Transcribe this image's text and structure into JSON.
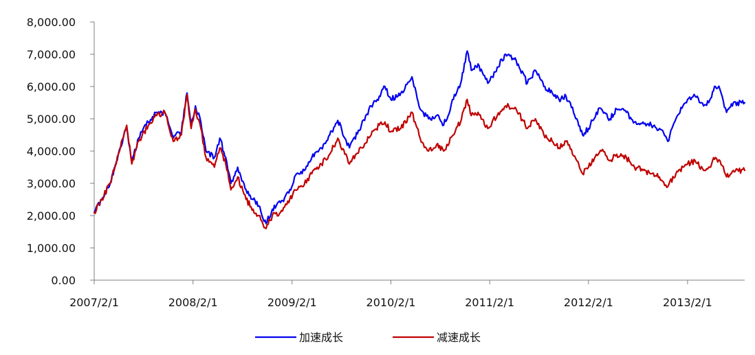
{
  "chart_data": {
    "type": "line",
    "title": "",
    "xlabel": "",
    "ylabel": "",
    "ylim": [
      0,
      8000
    ],
    "y_ticks": [
      0,
      1000,
      2000,
      3000,
      4000,
      5000,
      6000,
      7000,
      8000
    ],
    "y_tick_labels": [
      "0.00",
      "1,000.00",
      "2,000.00",
      "3,000.00",
      "4,000.00",
      "5,000.00",
      "6,000.00",
      "7,000.00",
      "8,000.00"
    ],
    "x_ticks": [
      "2007-02-01",
      "2008-02-01",
      "2009-02-01",
      "2010-02-01",
      "2011-02-01",
      "2012-02-01",
      "2013-02-01"
    ],
    "x_tick_labels": [
      "2007/2/1",
      "2008/2/1",
      "2009/2/1",
      "2010/2/1",
      "2011/2/1",
      "2012/2/1",
      "2013/2/1"
    ],
    "x_range": [
      "2007-02-01",
      "2013-08-31"
    ],
    "grid": false,
    "legend_position": "bottom",
    "series": [
      {
        "name": "加速成长",
        "color": "#0000ee",
        "points": [
          [
            "2007-02-01",
            2100
          ],
          [
            "2007-03-01",
            2500
          ],
          [
            "2007-04-01",
            3000
          ],
          [
            "2007-05-01",
            3900
          ],
          [
            "2007-06-01",
            4700
          ],
          [
            "2007-06-20",
            3700
          ],
          [
            "2007-07-15",
            4400
          ],
          [
            "2007-08-20",
            4900
          ],
          [
            "2007-09-20",
            5200
          ],
          [
            "2007-10-20",
            5200
          ],
          [
            "2007-11-20",
            4400
          ],
          [
            "2007-12-20",
            4600
          ],
          [
            "2008-01-10",
            5800
          ],
          [
            "2008-01-25",
            4800
          ],
          [
            "2008-02-10",
            5400
          ],
          [
            "2008-03-01",
            4900
          ],
          [
            "2008-03-20",
            4000
          ],
          [
            "2008-04-20",
            3800
          ],
          [
            "2008-05-10",
            4400
          ],
          [
            "2008-06-01",
            3800
          ],
          [
            "2008-06-20",
            3000
          ],
          [
            "2008-07-15",
            3500
          ],
          [
            "2008-08-15",
            2800
          ],
          [
            "2008-09-10",
            2500
          ],
          [
            "2008-10-01",
            2300
          ],
          [
            "2008-10-28",
            1750
          ],
          [
            "2008-11-20",
            2200
          ],
          [
            "2008-12-20",
            2400
          ],
          [
            "2009-01-20",
            2700
          ],
          [
            "2009-02-10",
            3200
          ],
          [
            "2009-03-10",
            3300
          ],
          [
            "2009-04-15",
            3800
          ],
          [
            "2009-05-20",
            4100
          ],
          [
            "2009-06-20",
            4500
          ],
          [
            "2009-07-20",
            4950
          ],
          [
            "2009-08-15",
            4400
          ],
          [
            "2009-09-01",
            4100
          ],
          [
            "2009-10-15",
            4800
          ],
          [
            "2009-11-20",
            5400
          ],
          [
            "2009-12-20",
            5700
          ],
          [
            "2010-01-10",
            6000
          ],
          [
            "2010-02-01",
            5600
          ],
          [
            "2010-03-10",
            5800
          ],
          [
            "2010-04-20",
            6300
          ],
          [
            "2010-05-20",
            5300
          ],
          [
            "2010-06-20",
            5000
          ],
          [
            "2010-07-20",
            5100
          ],
          [
            "2010-08-15",
            4800
          ],
          [
            "2010-09-20",
            5600
          ],
          [
            "2010-10-20",
            6200
          ],
          [
            "2010-11-10",
            7100
          ],
          [
            "2010-11-25",
            6500
          ],
          [
            "2010-12-20",
            6700
          ],
          [
            "2011-01-25",
            6100
          ],
          [
            "2011-02-10",
            6300
          ],
          [
            "2011-03-01",
            6600
          ],
          [
            "2011-04-01",
            7000
          ],
          [
            "2011-05-10",
            6800
          ],
          [
            "2011-06-20",
            6100
          ],
          [
            "2011-07-20",
            6500
          ],
          [
            "2011-08-20",
            6000
          ],
          [
            "2011-09-20",
            5800
          ],
          [
            "2011-10-15",
            5600
          ],
          [
            "2011-11-10",
            5700
          ],
          [
            "2011-12-20",
            5000
          ],
          [
            "2012-01-10",
            4500
          ],
          [
            "2012-02-01",
            4700
          ],
          [
            "2012-03-01",
            5200
          ],
          [
            "2012-03-20",
            5300
          ],
          [
            "2012-04-20",
            5000
          ],
          [
            "2012-05-15",
            5300
          ],
          [
            "2012-06-20",
            5200
          ],
          [
            "2012-07-20",
            4900
          ],
          [
            "2012-08-20",
            4900
          ],
          [
            "2012-09-20",
            4800
          ],
          [
            "2012-10-20",
            4700
          ],
          [
            "2012-11-20",
            4300
          ],
          [
            "2012-12-20",
            5000
          ],
          [
            "2013-01-15",
            5400
          ],
          [
            "2013-02-01",
            5600
          ],
          [
            "2013-03-01",
            5700
          ],
          [
            "2013-04-01",
            5400
          ],
          [
            "2013-04-20",
            5500
          ],
          [
            "2013-05-15",
            6000
          ],
          [
            "2013-06-01",
            5900
          ],
          [
            "2013-06-25",
            5200
          ],
          [
            "2013-07-20",
            5500
          ],
          [
            "2013-08-31",
            5500
          ]
        ]
      },
      {
        "name": "减速成长",
        "color": "#c00000",
        "points": [
          [
            "2007-02-01",
            2100
          ],
          [
            "2007-03-01",
            2500
          ],
          [
            "2007-04-01",
            3000
          ],
          [
            "2007-05-01",
            3900
          ],
          [
            "2007-06-01",
            4800
          ],
          [
            "2007-06-20",
            3600
          ],
          [
            "2007-07-15",
            4300
          ],
          [
            "2007-08-20",
            4800
          ],
          [
            "2007-09-20",
            5100
          ],
          [
            "2007-10-20",
            5200
          ],
          [
            "2007-11-20",
            4300
          ],
          [
            "2007-12-20",
            4500
          ],
          [
            "2008-01-10",
            5750
          ],
          [
            "2008-01-25",
            4700
          ],
          [
            "2008-02-10",
            5300
          ],
          [
            "2008-03-01",
            4700
          ],
          [
            "2008-03-20",
            3800
          ],
          [
            "2008-04-20",
            3500
          ],
          [
            "2008-05-10",
            4100
          ],
          [
            "2008-06-01",
            3600
          ],
          [
            "2008-06-20",
            2800
          ],
          [
            "2008-07-15",
            3200
          ],
          [
            "2008-08-15",
            2500
          ],
          [
            "2008-09-10",
            2200
          ],
          [
            "2008-10-01",
            2000
          ],
          [
            "2008-10-28",
            1600
          ],
          [
            "2008-11-20",
            2000
          ],
          [
            "2008-12-20",
            2100
          ],
          [
            "2009-01-20",
            2400
          ],
          [
            "2009-02-10",
            2800
          ],
          [
            "2009-03-10",
            2900
          ],
          [
            "2009-04-15",
            3300
          ],
          [
            "2009-05-20",
            3600
          ],
          [
            "2009-06-20",
            3900
          ],
          [
            "2009-07-20",
            4400
          ],
          [
            "2009-08-15",
            3900
          ],
          [
            "2009-09-01",
            3600
          ],
          [
            "2009-10-15",
            4100
          ],
          [
            "2009-11-20",
            4500
          ],
          [
            "2009-12-20",
            4800
          ],
          [
            "2010-01-10",
            4900
          ],
          [
            "2010-02-01",
            4600
          ],
          [
            "2010-03-10",
            4700
          ],
          [
            "2010-04-20",
            5200
          ],
          [
            "2010-05-20",
            4400
          ],
          [
            "2010-06-20",
            4000
          ],
          [
            "2010-07-20",
            4200
          ],
          [
            "2010-08-15",
            4000
          ],
          [
            "2010-09-20",
            4500
          ],
          [
            "2010-10-20",
            5000
          ],
          [
            "2010-11-10",
            5600
          ],
          [
            "2010-11-25",
            5100
          ],
          [
            "2010-12-20",
            5200
          ],
          [
            "2011-01-25",
            4700
          ],
          [
            "2011-02-10",
            4900
          ],
          [
            "2011-03-01",
            5100
          ],
          [
            "2011-04-01",
            5400
          ],
          [
            "2011-05-10",
            5300
          ],
          [
            "2011-06-20",
            4700
          ],
          [
            "2011-07-20",
            5000
          ],
          [
            "2011-08-20",
            4500
          ],
          [
            "2011-09-20",
            4300
          ],
          [
            "2011-10-15",
            4100
          ],
          [
            "2011-11-10",
            4300
          ],
          [
            "2011-12-20",
            3700
          ],
          [
            "2012-01-10",
            3300
          ],
          [
            "2012-02-01",
            3500
          ],
          [
            "2012-03-01",
            3900
          ],
          [
            "2012-03-20",
            4000
          ],
          [
            "2012-04-20",
            3700
          ],
          [
            "2012-05-15",
            3900
          ],
          [
            "2012-06-20",
            3800
          ],
          [
            "2012-07-20",
            3500
          ],
          [
            "2012-08-20",
            3400
          ],
          [
            "2012-09-20",
            3300
          ],
          [
            "2012-10-20",
            3200
          ],
          [
            "2012-11-20",
            2900
          ],
          [
            "2012-12-20",
            3300
          ],
          [
            "2013-01-15",
            3500
          ],
          [
            "2013-02-01",
            3600
          ],
          [
            "2013-03-01",
            3700
          ],
          [
            "2013-04-01",
            3400
          ],
          [
            "2013-04-20",
            3500
          ],
          [
            "2013-05-15",
            3800
          ],
          [
            "2013-06-01",
            3700
          ],
          [
            "2013-06-25",
            3200
          ],
          [
            "2013-07-20",
            3400
          ],
          [
            "2013-08-31",
            3400
          ]
        ]
      }
    ]
  }
}
